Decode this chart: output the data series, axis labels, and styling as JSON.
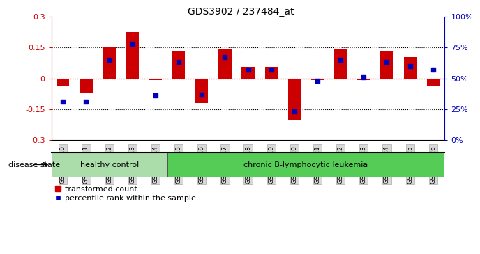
{
  "title": "GDS3902 / 237484_at",
  "samples": [
    "GSM658010",
    "GSM658011",
    "GSM658012",
    "GSM658013",
    "GSM658014",
    "GSM658015",
    "GSM658016",
    "GSM658017",
    "GSM658018",
    "GSM658019",
    "GSM658020",
    "GSM658021",
    "GSM658022",
    "GSM658023",
    "GSM658024",
    "GSM658025",
    "GSM658026"
  ],
  "red_values": [
    -0.04,
    -0.07,
    0.15,
    0.225,
    -0.01,
    0.13,
    -0.12,
    0.145,
    0.055,
    0.055,
    -0.205,
    -0.008,
    0.145,
    -0.008,
    0.13,
    0.105,
    -0.038
  ],
  "blue_pct": [
    31,
    31,
    65,
    78,
    36,
    63,
    37,
    67,
    57,
    57,
    23,
    48,
    65,
    51,
    63,
    60,
    57
  ],
  "groups": [
    {
      "label": "healthy control",
      "n_samples": 5,
      "color": "#aaddaa"
    },
    {
      "label": "chronic B-lymphocytic leukemia",
      "n_samples": 12,
      "color": "#55cc55"
    }
  ],
  "ylim_left": [
    -0.3,
    0.3
  ],
  "yticks_left": [
    -0.3,
    -0.15,
    0.0,
    0.15,
    0.3
  ],
  "ytick_right_pct": [
    0,
    25,
    50,
    75,
    100
  ],
  "red_color": "#cc0000",
  "blue_color": "#0000bb",
  "bar_width": 0.55,
  "blue_marker_size": 5,
  "legend_items": [
    "transformed count",
    "percentile rank within the sample"
  ],
  "disease_state_label": "disease state"
}
